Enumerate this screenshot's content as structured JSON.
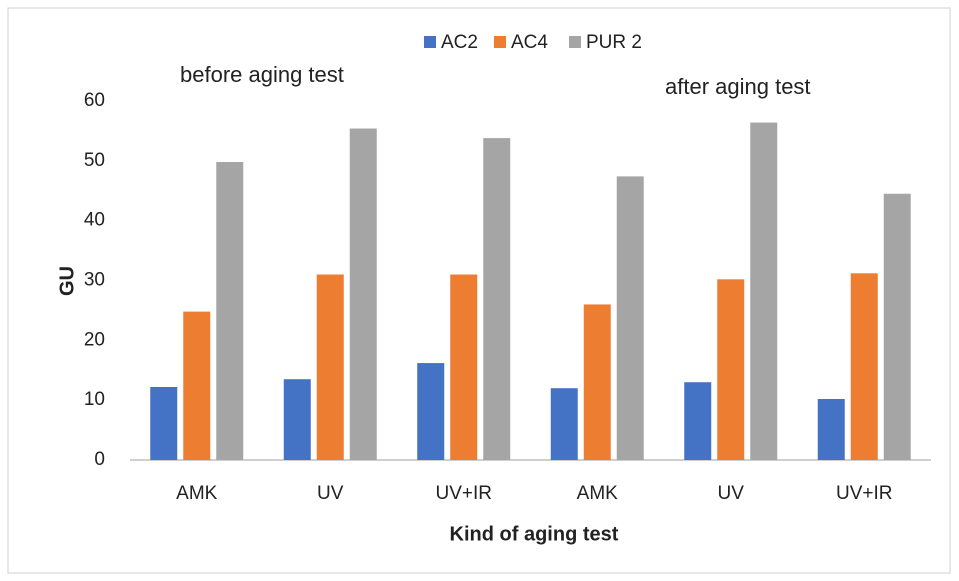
{
  "chart_data": {
    "type": "bar",
    "categories": [
      "AMK",
      "UV",
      "UV+IR",
      "AMK",
      "UV",
      "UV+IR"
    ],
    "series": [
      {
        "name": "AC2",
        "color": "#4472c4",
        "values": [
          12.2,
          13.5,
          16.2,
          12,
          13,
          10.2
        ]
      },
      {
        "name": "AC4",
        "color": "#ed7d31",
        "values": [
          24.8,
          31,
          31,
          26,
          30.2,
          31.2
        ]
      },
      {
        "name": "PUR 2",
        "color": "#a5a5a5",
        "values": [
          49.8,
          55.4,
          53.8,
          47.4,
          56.4,
          44.5
        ]
      }
    ],
    "x_label": "Kind of aging test",
    "y_label": "GU",
    "annotations": [
      "before aging test",
      "after aging test"
    ],
    "ylim": [
      0,
      60
    ],
    "yticks": [
      0,
      10,
      20,
      30,
      40,
      50,
      60
    ],
    "grid": false,
    "legend": "top"
  }
}
